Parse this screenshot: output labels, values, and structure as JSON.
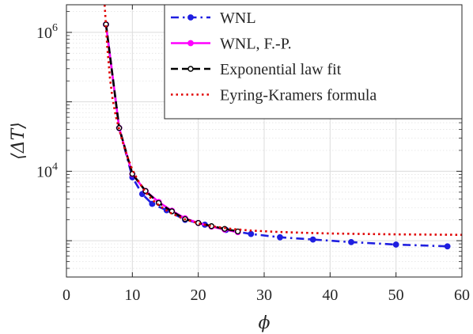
{
  "chart_data": {
    "type": "line",
    "title": "",
    "xlabel": "ϕ",
    "ylabel": "⟨ΔT⟩",
    "xlim": [
      0,
      60
    ],
    "ylim": [
      300,
      2500000
    ],
    "yscale": "log",
    "grid": true,
    "legend_position": "top-right",
    "xticks": [
      0,
      10,
      20,
      30,
      40,
      50,
      60
    ],
    "yticks": [
      {
        "value": 10000,
        "base": "10",
        "exp": "4"
      },
      {
        "value": 1000000,
        "base": "10",
        "exp": "6"
      }
    ],
    "series": [
      {
        "name": "WNL",
        "color": "#1f1fe0",
        "line_style": "dash-dot",
        "marker": "filled-circle",
        "x": [
          6,
          8,
          10,
          11.5,
          13,
          15.2,
          18,
          21,
          24.2,
          28,
          32.4,
          37.4,
          43.2,
          50,
          57.8
        ],
        "y": [
          1300000,
          42000,
          8200,
          4700,
          3400,
          2750,
          2000,
          1700,
          1430,
          1250,
          1120,
          1040,
          955,
          880,
          830
        ]
      },
      {
        "name": "WNL, F.-P.",
        "color": "#ff00ff",
        "line_style": "solid",
        "marker": "filled-circle",
        "x": [
          6,
          8,
          10,
          12,
          14,
          16,
          18,
          20,
          22,
          24,
          26
        ],
        "y": [
          1300000,
          42000,
          9100,
          5200,
          3600,
          2700,
          2100,
          1800,
          1600,
          1450,
          1330
        ]
      },
      {
        "name": "Exponential law fit",
        "color": "#000000",
        "line_style": "dashed",
        "marker": "open-circle",
        "x": [
          6,
          8,
          10,
          12,
          14,
          16,
          18,
          20,
          22,
          24,
          26
        ],
        "y": [
          1300000,
          42000,
          9200,
          5200,
          3500,
          2650,
          2050,
          1800,
          1620,
          1480,
          1360
        ]
      },
      {
        "name": "Eyring-Kramers formula",
        "color": "#e00000",
        "line_style": "dotted",
        "marker": "none",
        "x": [
          5.8,
          6.2,
          6.6,
          7,
          7.5,
          8,
          8.5,
          9,
          9.5,
          10,
          11,
          12,
          13,
          14,
          15,
          16,
          18,
          20,
          22,
          25,
          28,
          32,
          36,
          40,
          45,
          50,
          55,
          60
        ],
        "y": [
          2500000,
          600000,
          220000,
          110000,
          62000,
          40000,
          27000,
          19000,
          14000,
          10500,
          7000,
          5000,
          3900,
          3250,
          2800,
          2450,
          2030,
          1780,
          1620,
          1480,
          1400,
          1340,
          1300,
          1270,
          1250,
          1235,
          1225,
          1215
        ]
      }
    ]
  }
}
